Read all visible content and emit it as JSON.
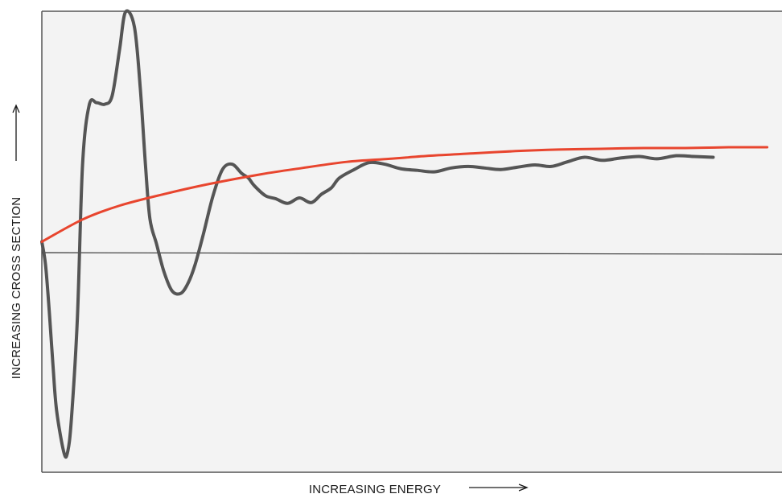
{
  "chart_data": {
    "type": "line",
    "title": "",
    "xlabel": "INCREASING ENERGY",
    "ylabel": "INCREASING CROSS SECTION",
    "xlim": [
      0,
      100
    ],
    "ylim": [
      -30,
      30
    ],
    "grid": false,
    "legend": "none",
    "series": [
      {
        "color": "#555555",
        "x": [
          0,
          0.5,
          1,
          1.5,
          2,
          3,
          3.5,
          4,
          4.8,
          5.5,
          6.4,
          7.4,
          8.5,
          9.5,
          10.5,
          11.3,
          12.5,
          13.3,
          14,
          14.6,
          15.5,
          16.5,
          17.6,
          18.8,
          19.8,
          20.7,
          21.8,
          23.1,
          24.4,
          25.7,
          27,
          27.9,
          28.7,
          30.2,
          31.6,
          33.2,
          34.8,
          36.4,
          37.8,
          39.1,
          40.2,
          42.2,
          44.2,
          46.3,
          48.5,
          50.7,
          53,
          55.3,
          57.6,
          59.8,
          62,
          64.2,
          66.6,
          68.8,
          71,
          73.3,
          75.7,
          78.2,
          80.7,
          83.1,
          85.7,
          88.1,
          90.7
        ],
        "y": [
          0,
          -3,
          -9,
          -16,
          -22,
          -27.5,
          -27.3,
          -23,
          -10,
          10,
          17.8,
          18.1,
          17.9,
          19,
          25,
          29.9,
          28,
          20,
          10,
          3,
          -0.3,
          -3.9,
          -6.4,
          -6.7,
          -5.3,
          -3,
          0.9,
          5.9,
          9.4,
          10.1,
          8.9,
          8.3,
          7.3,
          6,
          5.6,
          5,
          5.7,
          5.1,
          6.2,
          7,
          8.3,
          9.4,
          10.3,
          10.1,
          9.5,
          9.3,
          9.1,
          9.6,
          9.8,
          9.6,
          9.4,
          9.7,
          10,
          9.8,
          10.4,
          11,
          10.6,
          10.9,
          11.1,
          10.8,
          11.2,
          11.1,
          11
        ],
        "stroke_width": 4
      },
      {
        "color": "#e8452e",
        "x": [
          0,
          5.5,
          10.5,
          16.5,
          22.5,
          29.7,
          35.2,
          41.2,
          47,
          52.5,
          58.3,
          64,
          69.8,
          75.5,
          81.3,
          87,
          92.8,
          98
        ],
        "y": [
          0,
          2.9,
          4.7,
          6.2,
          7.5,
          8.8,
          9.6,
          10.4,
          10.8,
          11.2,
          11.5,
          11.8,
          12,
          12.1,
          12.2,
          12.2,
          12.3,
          12.3
        ],
        "stroke_width": 3
      }
    ]
  }
}
